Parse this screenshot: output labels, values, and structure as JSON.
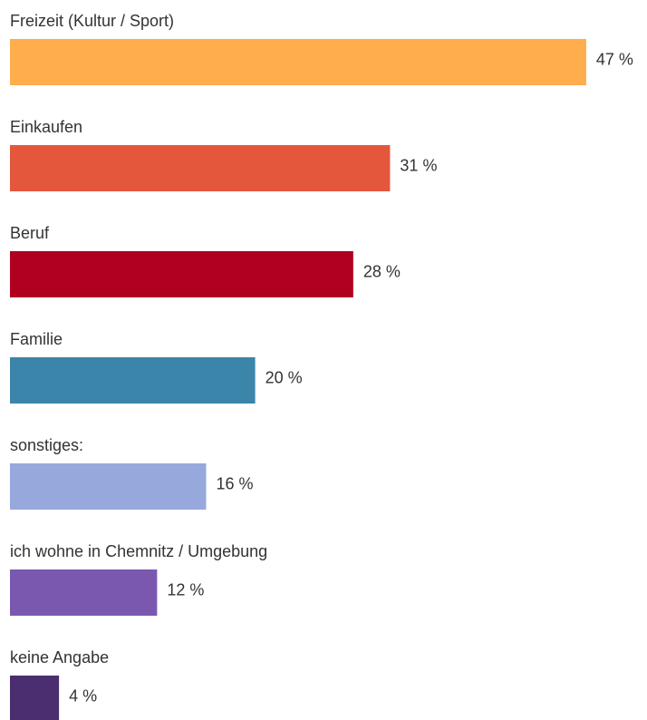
{
  "chart_data": {
    "type": "bar",
    "categories": [
      "Freizeit (Kultur / Sport)",
      "Einkaufen",
      "Beruf",
      "Familie",
      "sonstiges:",
      "ich wohne in Chemnitz / Umgebung",
      "keine Angabe"
    ],
    "values": [
      47,
      31,
      28,
      20,
      16,
      12,
      4
    ],
    "value_labels": [
      "47 %",
      "31 %",
      "28 %",
      "20 %",
      "16 %",
      "12 %",
      "4 %"
    ],
    "colors": [
      "#ffad4d",
      "#e5573d",
      "#b0001f",
      "#3b84aa",
      "#97a8dc",
      "#7a58b0",
      "#4b2e70"
    ]
  }
}
